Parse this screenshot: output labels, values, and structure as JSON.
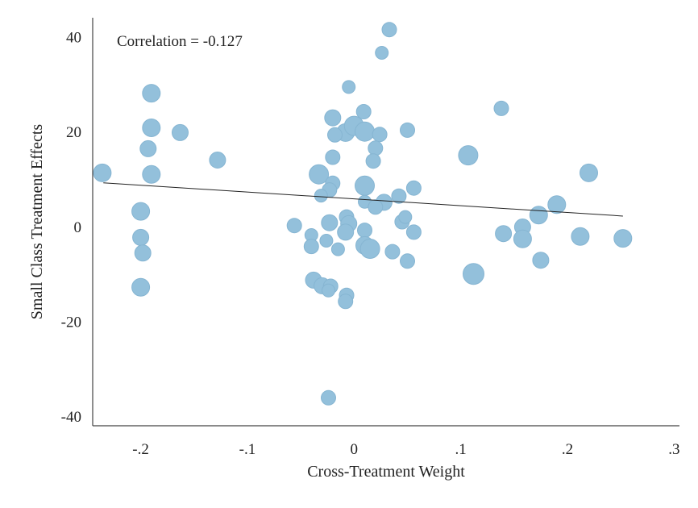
{
  "chart_data": {
    "type": "scatter",
    "title": "",
    "xlabel": "Cross-Treatment Weight",
    "ylabel": "Small Class Treatment Effects",
    "xlim": [
      -0.245,
      0.305
    ],
    "ylim": [
      -42,
      44
    ],
    "x_ticks": [
      -0.2,
      -0.1,
      0,
      0.1,
      0.2,
      0.3
    ],
    "x_tick_labels": [
      "-.2",
      "-.1",
      "0",
      ".1",
      ".2",
      ".3"
    ],
    "y_ticks": [
      40,
      20,
      0,
      -20,
      -40
    ],
    "y_tick_labels": [
      "40",
      "20",
      "0",
      "-20",
      "-40"
    ],
    "annotation": "Correlation = -0.127",
    "fit_line": {
      "x": [
        -0.235,
        0.252
      ],
      "y": [
        9.2,
        2.2
      ]
    },
    "points": [
      {
        "x": -0.236,
        "y": 11.3,
        "s": 11
      },
      {
        "x": -0.19,
        "y": 28.1,
        "s": 11
      },
      {
        "x": -0.19,
        "y": 20.8,
        "s": 11
      },
      {
        "x": -0.163,
        "y": 19.8,
        "s": 10
      },
      {
        "x": -0.193,
        "y": 16.4,
        "s": 10
      },
      {
        "x": -0.19,
        "y": 11.0,
        "s": 11
      },
      {
        "x": -0.128,
        "y": 14.0,
        "s": 10
      },
      {
        "x": -0.2,
        "y": 3.2,
        "s": 11
      },
      {
        "x": -0.2,
        "y": -2.3,
        "s": 10
      },
      {
        "x": -0.198,
        "y": -5.6,
        "s": 10
      },
      {
        "x": -0.2,
        "y": -12.8,
        "s": 11
      },
      {
        "x": 0.033,
        "y": 41.5,
        "s": 9
      },
      {
        "x": 0.026,
        "y": 36.6,
        "s": 8
      },
      {
        "x": -0.005,
        "y": 29.4,
        "s": 8
      },
      {
        "x": -0.02,
        "y": 22.9,
        "s": 10
      },
      {
        "x": 0.009,
        "y": 24.2,
        "s": 9
      },
      {
        "x": -0.008,
        "y": 19.8,
        "s": 11
      },
      {
        "x": 0.0,
        "y": 21.2,
        "s": 12
      },
      {
        "x": 0.01,
        "y": 20.0,
        "s": 12
      },
      {
        "x": -0.018,
        "y": 19.3,
        "s": 9
      },
      {
        "x": 0.024,
        "y": 19.4,
        "s": 9
      },
      {
        "x": 0.05,
        "y": 20.3,
        "s": 9
      },
      {
        "x": 0.02,
        "y": 16.5,
        "s": 9
      },
      {
        "x": -0.02,
        "y": 14.6,
        "s": 9
      },
      {
        "x": 0.018,
        "y": 13.8,
        "s": 9
      },
      {
        "x": -0.033,
        "y": 11.0,
        "s": 12
      },
      {
        "x": -0.02,
        "y": 9.1,
        "s": 9
      },
      {
        "x": 0.01,
        "y": 8.6,
        "s": 12
      },
      {
        "x": -0.023,
        "y": 7.7,
        "s": 9
      },
      {
        "x": 0.056,
        "y": 8.1,
        "s": 9
      },
      {
        "x": -0.031,
        "y": 6.5,
        "s": 8
      },
      {
        "x": 0.042,
        "y": 6.4,
        "s": 9
      },
      {
        "x": 0.028,
        "y": 5.1,
        "s": 10
      },
      {
        "x": 0.01,
        "y": 5.2,
        "s": 8
      },
      {
        "x": 0.02,
        "y": 4.1,
        "s": 9
      },
      {
        "x": 0.045,
        "y": 1.0,
        "s": 9
      },
      {
        "x": 0.048,
        "y": 2.0,
        "s": 8
      },
      {
        "x": -0.056,
        "y": 0.2,
        "s": 9
      },
      {
        "x": -0.023,
        "y": 0.8,
        "s": 10
      },
      {
        "x": -0.007,
        "y": 2.0,
        "s": 9
      },
      {
        "x": -0.005,
        "y": 0.6,
        "s": 10
      },
      {
        "x": 0.01,
        "y": -0.8,
        "s": 9
      },
      {
        "x": -0.008,
        "y": -1.2,
        "s": 10
      },
      {
        "x": 0.056,
        "y": -1.2,
        "s": 9
      },
      {
        "x": -0.04,
        "y": -1.8,
        "s": 8
      },
      {
        "x": -0.026,
        "y": -3.0,
        "s": 8
      },
      {
        "x": -0.04,
        "y": -4.2,
        "s": 9
      },
      {
        "x": -0.015,
        "y": -4.8,
        "s": 8
      },
      {
        "x": 0.01,
        "y": -4.0,
        "s": 11
      },
      {
        "x": 0.015,
        "y": -4.7,
        "s": 12
      },
      {
        "x": 0.036,
        "y": -5.3,
        "s": 9
      },
      {
        "x": 0.05,
        "y": -7.3,
        "s": 9
      },
      {
        "x": -0.038,
        "y": -11.3,
        "s": 10
      },
      {
        "x": -0.03,
        "y": -12.5,
        "s": 10
      },
      {
        "x": -0.022,
        "y": -12.6,
        "s": 9
      },
      {
        "x": -0.024,
        "y": -13.5,
        "s": 8
      },
      {
        "x": -0.007,
        "y": -14.5,
        "s": 9
      },
      {
        "x": -0.008,
        "y": -15.8,
        "s": 9
      },
      {
        "x": -0.024,
        "y": -36.1,
        "s": 9
      },
      {
        "x": 0.138,
        "y": 24.9,
        "s": 9
      },
      {
        "x": 0.107,
        "y": 15.0,
        "s": 12
      },
      {
        "x": 0.22,
        "y": 11.3,
        "s": 11
      },
      {
        "x": 0.19,
        "y": 4.6,
        "s": 11
      },
      {
        "x": 0.173,
        "y": 2.4,
        "s": 11
      },
      {
        "x": 0.158,
        "y": -0.1,
        "s": 10
      },
      {
        "x": 0.14,
        "y": -1.5,
        "s": 10
      },
      {
        "x": 0.158,
        "y": -2.6,
        "s": 11
      },
      {
        "x": 0.212,
        "y": -2.1,
        "s": 11
      },
      {
        "x": 0.252,
        "y": -2.5,
        "s": 11
      },
      {
        "x": 0.175,
        "y": -7.1,
        "s": 10
      },
      {
        "x": 0.112,
        "y": -10.0,
        "s": 13
      }
    ]
  }
}
